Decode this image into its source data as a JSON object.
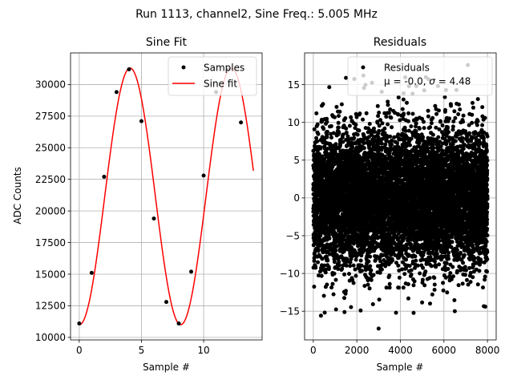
{
  "figure": {
    "suptitle": "Run 1113, channel2, Sine Freq.: 5.005 MHz"
  },
  "chart_data": [
    {
      "type": "scatter",
      "title": "Sine Fit",
      "xlabel": "Sample #",
      "ylabel": "ADC Counts",
      "xlim": [
        -0.7,
        14.7
      ],
      "ylim": [
        9800,
        32500
      ],
      "xticks": [
        0,
        5,
        10
      ],
      "yticks": [
        10000,
        12500,
        15000,
        17500,
        20000,
        22500,
        25000,
        27500,
        30000
      ],
      "grid": true,
      "legend": {
        "placement": "upper-right",
        "entries": [
          "Samples",
          "Sine fit"
        ]
      },
      "series": [
        {
          "name": "Samples",
          "kind": "points",
          "color": "#000000",
          "x": [
            0,
            1,
            2,
            3,
            4,
            5,
            6,
            7,
            8,
            9,
            10,
            11,
            12,
            13
          ],
          "y": [
            11100,
            15100,
            22700,
            29400,
            31200,
            27100,
            19400,
            12800,
            11100,
            15200,
            22800,
            29400,
            31200,
            27000
          ]
        },
        {
          "name": "Sine fit",
          "kind": "line",
          "color": "#ff0000",
          "function": {
            "offset": 21150,
            "amplitude": 10150,
            "period": 8.14,
            "phase_zero_x": 2.05,
            "x_start": 0,
            "x_end": 14
          }
        }
      ]
    },
    {
      "type": "scatter",
      "title": "Residuals",
      "xlabel": "Sample #",
      "ylabel": "",
      "xlim": [
        -400,
        8400
      ],
      "ylim": [
        -18.8,
        19.2
      ],
      "xticks": [
        0,
        2000,
        4000,
        6000,
        8000
      ],
      "yticks": [
        -15,
        -10,
        -5,
        0,
        5,
        10,
        15
      ],
      "grid": true,
      "legend": {
        "placement": "upper-right",
        "title": "Residuals",
        "mu_label": "μ = -0.0, ",
        "sigma_symbol": "σ",
        "sigma_value": " = 4.48"
      },
      "series": [
        {
          "name": "Residuals",
          "kind": "points",
          "color": "#000000",
          "summary": {
            "n": 8000,
            "x_range": [
              0,
              7999
            ],
            "mean": -0.0,
            "std": 4.48
          },
          "outliers": [
            {
              "x": 2300,
              "y": 16.2
            },
            {
              "x": 3000,
              "y": -17.3
            },
            {
              "x": 3800,
              "y": -15.2
            },
            {
              "x": 7100,
              "y": 17.6
            },
            {
              "x": 6500,
              "y": -15.0
            },
            {
              "x": 7900,
              "y": -14.4
            },
            {
              "x": 1500,
              "y": 15.9
            },
            {
              "x": 5300,
              "y": 15.7
            }
          ]
        }
      ]
    }
  ]
}
